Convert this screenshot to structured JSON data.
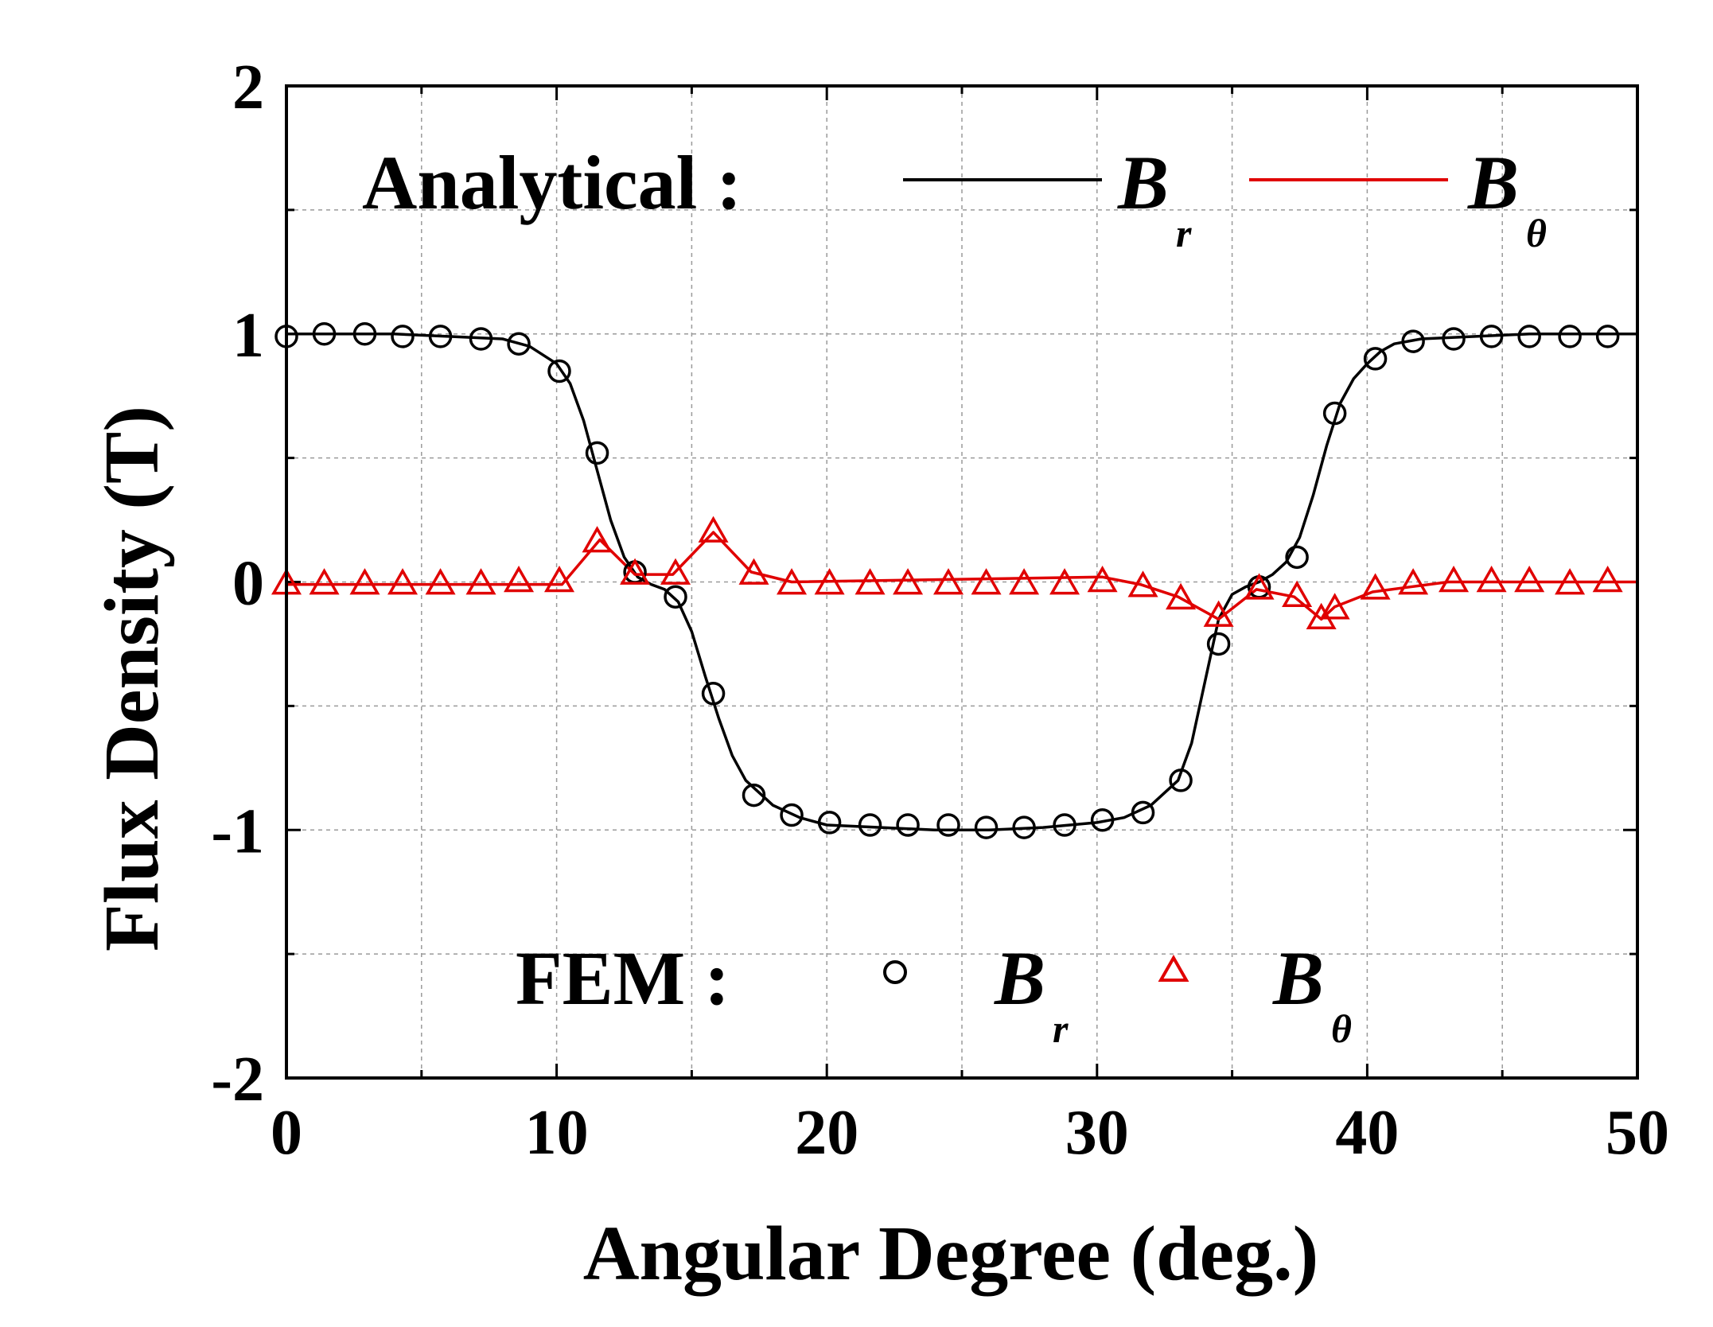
{
  "chart_data": {
    "type": "line",
    "xlabel": "Angular Degree (deg.)",
    "ylabel": "Flux Density (T)",
    "xlim": [
      0,
      50
    ],
    "ylim": [
      -2,
      2
    ],
    "xticks": [
      "0",
      "10",
      "20",
      "30",
      "40",
      "50"
    ],
    "yticks": [
      "2",
      "1",
      "0",
      "-1",
      "-2"
    ],
    "grid": true,
    "colors": {
      "br": "#000000",
      "btheta": "#e00000"
    },
    "legend": {
      "placement": "top (analytical) and bottom (FEM) inside plot",
      "analytical_label": "Analytical :",
      "fem_label": "FEM :",
      "br_main": "B",
      "br_sub": "r",
      "btheta_main": "B",
      "btheta_sub": "θ"
    },
    "series": [
      {
        "name": "Analytical B_r",
        "style": "line",
        "color": "#000000",
        "x": [
          0,
          2,
          4,
          6,
          8,
          9,
          10,
          10.5,
          11,
          11.5,
          12,
          12.5,
          13,
          13.5,
          14,
          14.5,
          15,
          15.5,
          16,
          16.5,
          17,
          18,
          19,
          20,
          22,
          24,
          26,
          28,
          30,
          31,
          32,
          33,
          33.5,
          34,
          34.5,
          35,
          35.5,
          36,
          36.5,
          37,
          37.5,
          38,
          38.5,
          39,
          39.5,
          40,
          40.5,
          41,
          42,
          44,
          46,
          48,
          50
        ],
        "y": [
          1.0,
          1.0,
          1.0,
          0.99,
          0.98,
          0.95,
          0.88,
          0.8,
          0.65,
          0.45,
          0.25,
          0.1,
          0.02,
          -0.01,
          -0.03,
          -0.08,
          -0.2,
          -0.38,
          -0.55,
          -0.7,
          -0.8,
          -0.9,
          -0.95,
          -0.98,
          -0.99,
          -1.0,
          -1.0,
          -0.99,
          -0.97,
          -0.95,
          -0.9,
          -0.8,
          -0.65,
          -0.4,
          -0.15,
          -0.05,
          -0.02,
          0.0,
          0.03,
          0.08,
          0.18,
          0.35,
          0.55,
          0.72,
          0.82,
          0.88,
          0.93,
          0.96,
          0.98,
          0.99,
          1.0,
          1.0,
          1.0
        ]
      },
      {
        "name": "Analytical B_θ",
        "style": "line",
        "color": "#e00000",
        "x": [
          0,
          10.2,
          11.6,
          12.9,
          14.3,
          15.8,
          17.2,
          18.7,
          30.2,
          31.6,
          33.0,
          34.5,
          35.9,
          37.3,
          38.3,
          38.8,
          40.2,
          41.6,
          43.0,
          50
        ],
        "y": [
          -0.01,
          -0.01,
          0.17,
          0.03,
          0.03,
          0.2,
          0.04,
          0.0,
          0.02,
          -0.01,
          -0.06,
          -0.15,
          -0.03,
          -0.06,
          -0.15,
          -0.1,
          -0.04,
          -0.02,
          0.0,
          0.0
        ]
      },
      {
        "name": "FEM B_r",
        "style": "circle",
        "color": "#000000",
        "x": [
          0,
          1.4,
          2.9,
          4.3,
          5.7,
          7.2,
          8.6,
          10.1,
          11.5,
          12.9,
          14.4,
          15.8,
          17.3,
          18.7,
          20.1,
          21.6,
          23.0,
          24.5,
          25.9,
          27.3,
          28.8,
          30.2,
          31.7,
          33.1,
          34.5,
          36.0,
          37.4,
          38.8,
          40.3,
          41.7,
          43.2,
          44.6,
          46.0,
          47.5,
          48.9
        ],
        "y": [
          0.99,
          1.0,
          1.0,
          0.99,
          0.99,
          0.98,
          0.96,
          0.85,
          0.52,
          0.04,
          -0.06,
          -0.45,
          -0.86,
          -0.94,
          -0.97,
          -0.98,
          -0.98,
          -0.98,
          -0.99,
          -0.99,
          -0.98,
          -0.96,
          -0.93,
          -0.8,
          -0.25,
          -0.02,
          0.1,
          0.68,
          0.9,
          0.97,
          0.98,
          0.99,
          0.99,
          0.99,
          0.99
        ]
      },
      {
        "name": "FEM B_θ",
        "style": "triangle",
        "color": "#e00000",
        "x": [
          0,
          1.4,
          2.9,
          4.3,
          5.7,
          7.2,
          8.6,
          10.1,
          11.5,
          12.9,
          14.4,
          15.8,
          17.3,
          18.7,
          20.1,
          21.6,
          23.0,
          24.5,
          25.9,
          27.3,
          28.8,
          30.2,
          31.7,
          33.1,
          34.5,
          36.0,
          37.4,
          38.3,
          38.8,
          40.3,
          41.7,
          43.2,
          44.6,
          46.0,
          47.5,
          48.9
        ],
        "y": [
          -0.01,
          -0.01,
          -0.01,
          -0.01,
          -0.01,
          -0.01,
          0.0,
          0.0,
          0.16,
          0.03,
          0.03,
          0.2,
          0.03,
          -0.01,
          -0.01,
          -0.01,
          -0.01,
          -0.01,
          -0.01,
          -0.01,
          -0.01,
          0.0,
          -0.02,
          -0.07,
          -0.14,
          -0.03,
          -0.06,
          -0.15,
          -0.11,
          -0.03,
          -0.01,
          0.0,
          0.0,
          0.0,
          -0.01,
          0.0
        ]
      }
    ]
  }
}
